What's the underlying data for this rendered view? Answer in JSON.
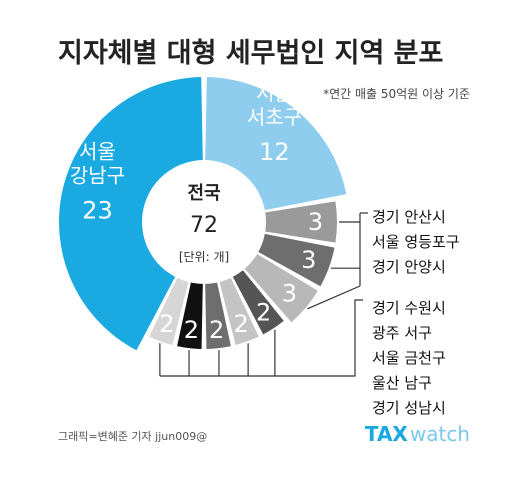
{
  "title": "지자체별 대형 세무법인 지역 분포",
  "subtitle": "*연간 매출 50억원 이상 기준",
  "center": {
    "title": "전국",
    "total": "72",
    "unit": "[단위: 개]"
  },
  "credit": "그래픽=변혜준 기자 jjun009@",
  "brand": {
    "tax": "TAX",
    "watch": "watch"
  },
  "colors": {
    "seoul_gangnam": "#1aa9e1",
    "seoul_seocho": "#8fcdef",
    "gray_light": "#b8b8b8",
    "gray_mid": "#9a9a9a",
    "gray_dark": "#6e6e6e",
    "gray_darker": "#555555",
    "black": "#111111"
  },
  "chart_data": {
    "type": "pie",
    "title": "지자체별 대형 세무법인 지역 분포",
    "total": 72,
    "slices": [
      {
        "label": "서울 서초구",
        "value": 12,
        "color": "#8fcdef",
        "labeled": true
      },
      {
        "label": "경기 안산시",
        "value": 3,
        "color": "#9a9a9a"
      },
      {
        "label": "서울 영등포구",
        "value": 3,
        "color": "#6e6e6e"
      },
      {
        "label": "경기 안양시",
        "value": 3,
        "color": "#b8b8b8"
      },
      {
        "label": "경기 수원시",
        "value": 2,
        "color": "#555555"
      },
      {
        "label": "광주 서구",
        "value": 2,
        "color": "#c4c4c4"
      },
      {
        "label": "서울 금천구",
        "value": 2,
        "color": "#6e6e6e"
      },
      {
        "label": "울산 남구",
        "value": 2,
        "color": "#111111"
      },
      {
        "label": "경기 성남시",
        "value": 2,
        "color": "#d6d6d6"
      },
      {
        "label": "서울 강남구",
        "value": 23,
        "color": "#1aa9e1",
        "labeled": true
      }
    ],
    "groups": [
      {
        "name": "group-1",
        "labels": [
          "경기 안산시",
          "서울 영등포구",
          "경기 안양시"
        ]
      },
      {
        "name": "group-2",
        "labels": [
          "경기 수원시",
          "광주 서구",
          "서울 금천구",
          "울산 남구",
          "경기 성남시"
        ]
      }
    ]
  }
}
